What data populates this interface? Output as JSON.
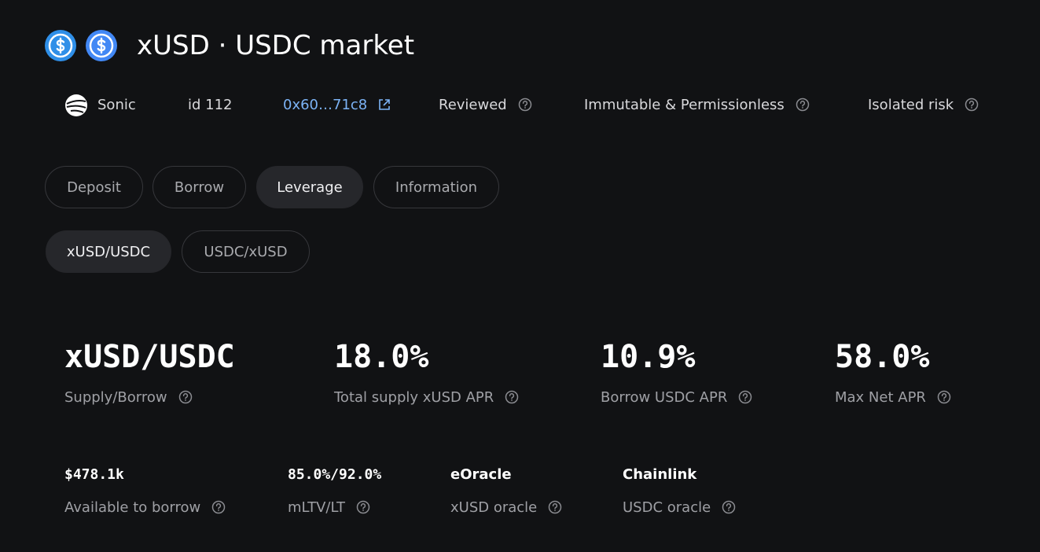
{
  "header": {
    "title": "xUSD · USDC market"
  },
  "meta": {
    "network": "Sonic",
    "id": "id 112",
    "address": "0x60…71c8",
    "status": "Reviewed",
    "type": "Immutable & Permissionless",
    "risk": "Isolated risk"
  },
  "tabs": [
    "Deposit",
    "Borrow",
    "Leverage",
    "Information"
  ],
  "pairs": [
    "xUSD/USDC",
    "USDC/xUSD"
  ],
  "stats": [
    {
      "value": "xUSD/USDC",
      "label": "Supply/Borrow"
    },
    {
      "value": "18.0%",
      "label": "Total supply xUSD APR"
    },
    {
      "value": "10.9%",
      "label": "Borrow USDC APR"
    },
    {
      "value": "58.0%",
      "label": "Max Net APR"
    }
  ],
  "details": [
    {
      "value": "$478.1k",
      "label": "Available to borrow"
    },
    {
      "value": "85.0%/92.0%",
      "label": "mLTV/LT"
    },
    {
      "value": "eOracle",
      "label": "xUSD oracle"
    },
    {
      "value": "Chainlink",
      "label": "USDC oracle"
    }
  ]
}
